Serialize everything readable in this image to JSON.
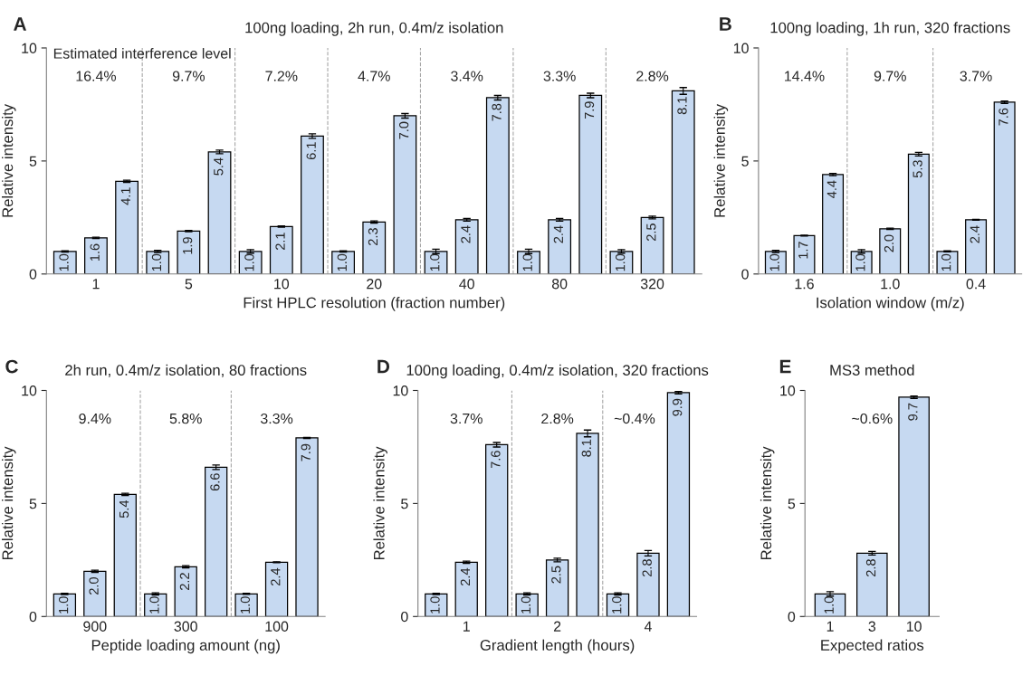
{
  "chart_data": [
    {
      "type": "bar",
      "title": "A",
      "subtitle": "100ng loading, 2h run, 0.4m/z isolation",
      "xlabel": "First HPLC resolution (fraction number)",
      "ylabel": "Relative intensity",
      "color": "#c6d9f1",
      "categories": [
        null,
        "1",
        null,
        null,
        "5",
        null,
        null,
        "10",
        null,
        null,
        "20",
        null,
        null,
        "40",
        null,
        null,
        "80",
        null,
        null,
        "320",
        null
      ],
      "values": [
        1.0,
        1.6,
        4.1,
        1.0,
        1.9,
        5.4,
        1.0,
        2.1,
        6.1,
        1.0,
        2.3,
        7.0,
        1.0,
        2.4,
        7.8,
        1.0,
        2.4,
        7.9,
        1.0,
        2.5,
        8.1
      ],
      "errors": [
        0.03,
        0.03,
        0.05,
        0.05,
        0.03,
        0.08,
        0.08,
        0.03,
        0.1,
        0.03,
        0.05,
        0.1,
        0.1,
        0.06,
        0.1,
        0.1,
        0.06,
        0.1,
        0.08,
        0.06,
        0.15
      ],
      "value_labels": [
        "1.0",
        "1.6",
        "4.1",
        "1.0",
        "1.9",
        "5.4",
        "1.0",
        "2.1",
        "6.1",
        "1.0",
        "2.3",
        "7.0",
        "1.0",
        "2.4",
        "7.8",
        "1.0",
        "2.4",
        "7.9",
        "1.0",
        "2.5",
        "8.1"
      ],
      "ylim": [
        0,
        10
      ],
      "yticks": [
        0,
        5,
        10
      ],
      "annotations": [
        "Estimated interference level",
        "16.4%",
        "9.7%",
        "7.2%",
        "4.7%",
        "3.4%",
        "3.3%",
        "2.8%"
      ]
    },
    {
      "type": "bar",
      "title": "B",
      "subtitle": "100ng loading, 1h run, 320 fractions",
      "xlabel": "Isolation window (m/z)",
      "ylabel": "Relative intensity",
      "color": "#c6d9f1",
      "categories": [
        null,
        "1.6",
        null,
        null,
        "1.0",
        null,
        null,
        "0.4",
        null
      ],
      "values": [
        1.0,
        1.7,
        4.4,
        1.0,
        2.0,
        5.3,
        1.0,
        2.4,
        7.6
      ],
      "errors": [
        0.05,
        0.02,
        0.05,
        0.08,
        0.03,
        0.08,
        0.02,
        0.02,
        0.05
      ],
      "value_labels": [
        "1.0",
        "1.7",
        "4.4",
        "1.0",
        "2.0",
        "5.3",
        "1.0",
        "2.4",
        "7.6"
      ],
      "ylim": [
        0,
        10
      ],
      "yticks": [
        0,
        5,
        10
      ],
      "annotations": [
        "14.4%",
        "9.7%",
        "3.7%"
      ]
    },
    {
      "type": "bar",
      "title": "C",
      "subtitle": "2h run, 0.4m/z isolation, 80 fractions",
      "xlabel": "Peptide loading amount (ng)",
      "ylabel": "Relative intensity",
      "color": "#c6d9f1",
      "categories": [
        null,
        "900",
        null,
        null,
        "300",
        null,
        null,
        "100",
        null
      ],
      "values": [
        1.0,
        2.0,
        5.4,
        1.0,
        2.2,
        6.6,
        1.0,
        2.4,
        7.9
      ],
      "errors": [
        0.03,
        0.05,
        0.05,
        0.05,
        0.05,
        0.1,
        0.02,
        0.02,
        0.02
      ],
      "value_labels": [
        "1.0",
        "2.0",
        "5.4",
        "1.0",
        "2.2",
        "6.6",
        "1.0",
        "2.4",
        "7.9"
      ],
      "ylim": [
        0,
        10
      ],
      "yticks": [
        0,
        5,
        10
      ],
      "annotations": [
        "9.4%",
        "5.8%",
        "3.3%"
      ]
    },
    {
      "type": "bar",
      "title": "D",
      "subtitle": "100ng loading, 0.4m/z isolation, 320 fractions",
      "xlabel": "Gradient length (hours)",
      "ylabel": "Relative intensity",
      "color": "#c6d9f1",
      "categories": [
        null,
        "1",
        null,
        null,
        "2",
        null,
        null,
        "4",
        null
      ],
      "values": [
        1.0,
        2.4,
        7.6,
        1.0,
        2.5,
        8.1,
        1.0,
        2.8,
        9.9
      ],
      "errors": [
        0.03,
        0.05,
        0.1,
        0.05,
        0.08,
        0.15,
        0.05,
        0.12,
        0.05
      ],
      "value_labels": [
        "1.0",
        "2.4",
        "7.6",
        "1.0",
        "2.5",
        "8.1",
        "1.0",
        "2.8",
        "9.9"
      ],
      "ylim": [
        0,
        10
      ],
      "yticks": [
        0,
        5,
        10
      ],
      "annotations": [
        "3.7%",
        "2.8%",
        "~0.4%"
      ]
    },
    {
      "type": "bar",
      "title": "E",
      "subtitle": "MS3 method",
      "xlabel": "Expected ratios",
      "ylabel": "Relative intensity",
      "color": "#c6d9f1",
      "categories": [
        "1",
        "3",
        "10"
      ],
      "values": [
        1.0,
        2.8,
        9.7
      ],
      "errors": [
        0.1,
        0.08,
        0.05
      ],
      "value_labels": [
        "1.0",
        "2.8",
        "9.7"
      ],
      "ylim": [
        0,
        10
      ],
      "yticks": [
        0,
        5,
        10
      ],
      "annotations": [
        "~0.6%"
      ]
    }
  ]
}
